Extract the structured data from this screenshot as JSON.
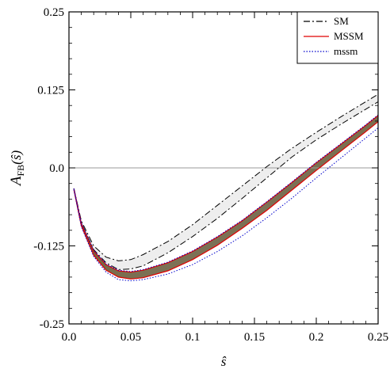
{
  "chart_data": {
    "type": "line",
    "title": "",
    "xlabel": "ŝ",
    "ylabel_main": "A",
    "ylabel_sub": "FB",
    "ylabel_arg": "(ŝ)",
    "xlim": [
      0.0,
      0.25
    ],
    "ylim": [
      -0.25,
      0.25
    ],
    "x_ticks": [
      0.0,
      0.05,
      0.1,
      0.15,
      0.2,
      0.25
    ],
    "x_tick_labels": [
      "0.0",
      "0.05",
      "0.1",
      "0.15",
      "0.2",
      "0.25"
    ],
    "y_ticks": [
      -0.25,
      -0.125,
      0.0,
      0.125,
      0.25
    ],
    "y_tick_labels": [
      "-0.25",
      "-0.125",
      "0.0",
      "0.125",
      "0.25"
    ],
    "zero_line": true,
    "grid": false,
    "legend_position": "top-right",
    "legend": [
      {
        "label": "SM",
        "style": "dash-dot",
        "color": "#000000"
      },
      {
        "label": "MSSM",
        "style": "solid",
        "color": "#e00000"
      },
      {
        "label": "mssm",
        "style": "dotted",
        "color": "#0000cc"
      }
    ],
    "series": [
      {
        "name": "SM",
        "style": "dash-dot",
        "color": "#000000",
        "band_fill": "#eeeeee",
        "x": [
          0.004,
          0.01,
          0.02,
          0.03,
          0.04,
          0.05,
          0.06,
          0.08,
          0.1,
          0.12,
          0.14,
          0.16,
          0.18,
          0.2,
          0.22,
          0.24,
          0.25
        ],
        "upper": [
          -0.033,
          -0.085,
          -0.125,
          -0.143,
          -0.149,
          -0.147,
          -0.139,
          -0.118,
          -0.091,
          -0.06,
          -0.029,
          0.002,
          0.031,
          0.057,
          0.082,
          0.106,
          0.118
        ],
        "lower": [
          -0.033,
          -0.088,
          -0.131,
          -0.152,
          -0.163,
          -0.162,
          -0.157,
          -0.136,
          -0.11,
          -0.081,
          -0.049,
          -0.016,
          0.017,
          0.045,
          0.07,
          0.094,
          0.106
        ]
      },
      {
        "name": "MSSM",
        "style": "solid",
        "color": "#e00000",
        "band_fill": "#777777",
        "x": [
          0.004,
          0.01,
          0.02,
          0.03,
          0.04,
          0.05,
          0.06,
          0.08,
          0.1,
          0.12,
          0.14,
          0.16,
          0.18,
          0.2,
          0.22,
          0.24,
          0.25
        ],
        "upper": [
          -0.033,
          -0.089,
          -0.133,
          -0.155,
          -0.165,
          -0.167,
          -0.164,
          -0.152,
          -0.134,
          -0.111,
          -0.085,
          -0.055,
          -0.024,
          0.008,
          0.038,
          0.068,
          0.084
        ],
        "lower": [
          -0.035,
          -0.093,
          -0.14,
          -0.164,
          -0.175,
          -0.178,
          -0.176,
          -0.165,
          -0.147,
          -0.124,
          -0.097,
          -0.068,
          -0.036,
          -0.004,
          0.027,
          0.058,
          0.074
        ]
      },
      {
        "name": "mssm",
        "style": "dotted",
        "color": "#0000cc",
        "x": [
          0.004,
          0.01,
          0.02,
          0.03,
          0.04,
          0.05,
          0.06,
          0.08,
          0.1,
          0.12,
          0.14,
          0.16,
          0.18,
          0.2,
          0.22,
          0.24,
          0.25
        ],
        "upper": [
          -0.033,
          -0.088,
          -0.132,
          -0.154,
          -0.164,
          -0.166,
          -0.163,
          -0.151,
          -0.133,
          -0.11,
          -0.084,
          -0.054,
          -0.023,
          0.009,
          0.039,
          0.069,
          0.085
        ],
        "lower": [
          -0.035,
          -0.094,
          -0.142,
          -0.167,
          -0.179,
          -0.181,
          -0.179,
          -0.17,
          -0.155,
          -0.134,
          -0.109,
          -0.08,
          -0.049,
          -0.016,
          0.016,
          0.048,
          0.064
        ]
      }
    ]
  }
}
